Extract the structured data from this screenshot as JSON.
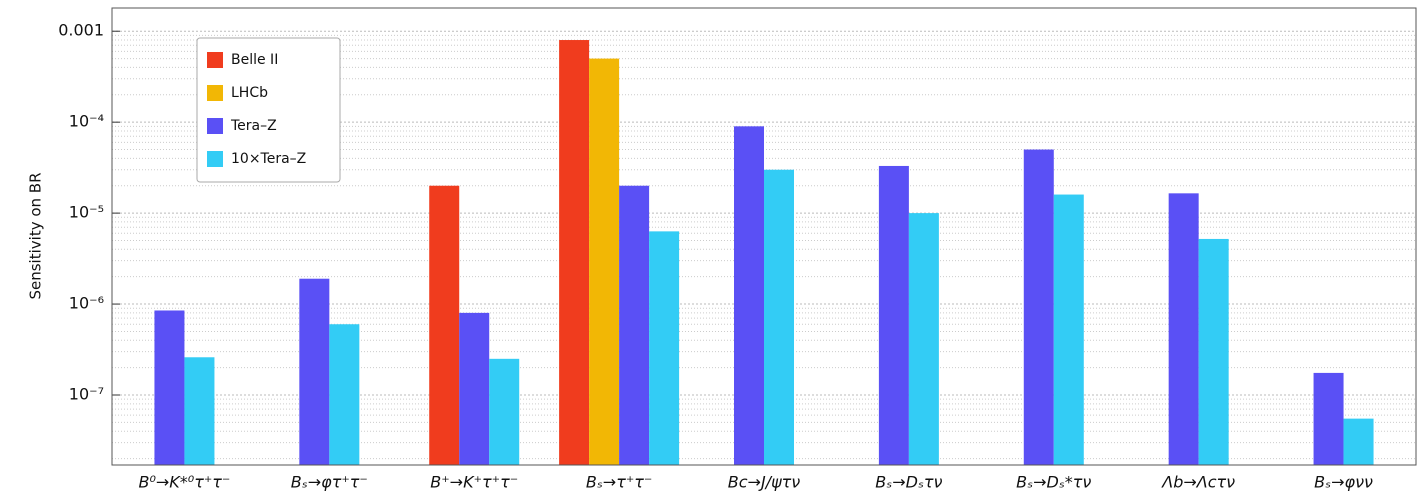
{
  "chart_data": {
    "type": "bar",
    "y_label": "Sensitivity on BR",
    "categories": [
      "B⁰→K*⁰τ⁺τ⁻",
      "Bₛ→φτ⁺τ⁻",
      "B⁺→K⁺τ⁺τ⁻",
      "Bₛ→τ⁺τ⁻",
      "Bc→J/ψτν",
      "Bₛ→Dₛτν",
      "Bₛ→Dₛ*τν",
      "Λb→Λcτν",
      "Bₛ→φνν"
    ],
    "series": [
      {
        "name": "Belle II",
        "color": "#f03c1e",
        "values": [
          null,
          null,
          2e-05,
          0.0008,
          null,
          null,
          null,
          null,
          null
        ]
      },
      {
        "name": "LHCb",
        "color": "#f2b705",
        "values": [
          null,
          null,
          null,
          0.0005,
          null,
          null,
          null,
          null,
          null
        ]
      },
      {
        "name": "Tera–Z",
        "color": "#5a50f5",
        "values": [
          8.5e-07,
          1.9e-06,
          8e-07,
          2e-05,
          9e-05,
          3.3e-05,
          5e-05,
          1.65e-05,
          1.75e-07
        ]
      },
      {
        "name": "10×Tera–Z",
        "color": "#33ccf5",
        "values": [
          2.6e-07,
          6e-07,
          2.5e-07,
          6.3e-06,
          3e-05,
          1e-05,
          1.6e-05,
          5.2e-06,
          5.5e-08
        ]
      }
    ],
    "log_y": true,
    "ylim": [
      1.7e-08,
      0.0018
    ],
    "yticks": [
      0.001,
      {
        "value": 0.0001,
        "label": "10⁻⁴"
      },
      {
        "value": 1e-05,
        "label": "10⁻⁵"
      },
      {
        "value": 1e-06,
        "label": "10⁻⁶"
      },
      {
        "value": 1e-07,
        "label": "10⁻⁷"
      }
    ],
    "grid": true,
    "legend": "upper-left"
  }
}
